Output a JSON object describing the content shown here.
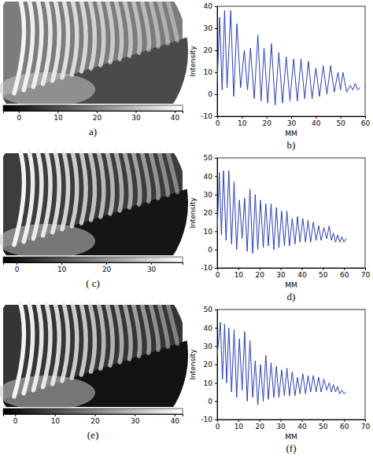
{
  "chart_data": [
    {
      "type": "image",
      "label": "a)",
      "colorbar": {
        "range": [
          -4,
          42
        ],
        "ticks": [
          0,
          10,
          20,
          30,
          40
        ]
      }
    },
    {
      "type": "line",
      "label": "b)",
      "xlabel": "MM",
      "ylabel": "Intensity",
      "color": "#2a3fb5",
      "xlim": [
        0,
        60
      ],
      "xticks": [
        0,
        10,
        20,
        30,
        40,
        50,
        60
      ],
      "ylim": [
        -10,
        40
      ],
      "yticks": [
        -10,
        0,
        10,
        20,
        30,
        40
      ],
      "x": [
        0,
        1,
        2,
        3,
        4,
        5.5,
        6.7,
        8,
        9.5,
        11,
        12.3,
        13.5,
        15,
        16.5,
        17.8,
        19,
        20.5,
        22,
        23.5,
        25,
        26.5,
        28,
        29.5,
        31,
        32.5,
        34,
        35.5,
        37,
        38.5,
        40,
        41.5,
        43,
        44.5,
        46,
        47.5,
        49,
        50,
        51,
        52.5,
        54,
        55,
        56,
        57,
        58
      ],
      "values": [
        5,
        35,
        2,
        38,
        3,
        38,
        -1,
        32,
        3,
        20,
        2,
        21,
        -2,
        27,
        -3,
        21,
        -4,
        23,
        -5,
        19,
        -4,
        17,
        -3,
        16,
        -3,
        16,
        -2,
        15,
        -2,
        12,
        -1,
        13,
        0,
        13,
        1,
        10,
        2,
        10,
        1,
        4,
        2,
        5,
        2,
        3
      ]
    },
    {
      "type": "image",
      "label": "( c)",
      "colorbar": {
        "range": [
          -3,
          37
        ],
        "ticks": [
          0,
          10,
          20,
          30
        ]
      }
    },
    {
      "type": "line",
      "label": "d)",
      "xlabel": "MM",
      "ylabel": "Intensity",
      "color": "#2a3fb5",
      "xlim": [
        0,
        70
      ],
      "xticks": [
        0,
        10,
        20,
        30,
        40,
        50,
        60,
        70
      ],
      "ylim": [
        -10,
        50
      ],
      "yticks": [
        -10,
        0,
        10,
        20,
        30,
        40,
        50
      ],
      "x": [
        0,
        1,
        2,
        3,
        4.2,
        5.5,
        6.8,
        8,
        9.2,
        10.5,
        11.8,
        13,
        14.2,
        15.5,
        16.8,
        18,
        19.2,
        20.5,
        21.8,
        23,
        24.2,
        25.5,
        26.8,
        28,
        29.2,
        30.5,
        31.8,
        33,
        34.2,
        35.5,
        36.8,
        38,
        39.2,
        40.5,
        41.8,
        43,
        44.2,
        45.5,
        46.8,
        48,
        49.2,
        50.5,
        51.8,
        53,
        54,
        55,
        56,
        57,
        58,
        59,
        60,
        61
      ],
      "values": [
        10,
        42,
        8,
        43,
        5,
        43,
        3,
        37,
        0,
        27,
        6,
        28,
        -1,
        33,
        -2,
        30,
        0,
        27,
        1,
        25,
        2,
        25,
        0,
        23,
        1,
        21,
        2,
        21,
        2,
        17,
        3,
        18,
        4,
        17,
        4,
        16,
        4,
        15,
        5,
        13,
        5,
        12,
        6,
        13,
        5,
        9,
        4,
        8,
        4,
        7,
        4,
        6
      ]
    },
    {
      "type": "image",
      "label": "(e)",
      "colorbar": {
        "range": [
          -3,
          42
        ],
        "ticks": [
          0,
          10,
          20,
          30,
          40
        ]
      }
    },
    {
      "type": "line",
      "label": "(f)",
      "xlabel": "MM",
      "ylabel": "Intensity",
      "color": "#2a3fb5",
      "xlim": [
        0,
        70
      ],
      "xticks": [
        0,
        10,
        20,
        30,
        40,
        50,
        60,
        70
      ],
      "ylim": [
        -10,
        50
      ],
      "yticks": [
        -10,
        0,
        10,
        20,
        30,
        40,
        50
      ],
      "x": [
        0,
        1.5,
        2.5,
        3.5,
        4.5,
        5.5,
        6.8,
        8,
        9.2,
        10.5,
        11.8,
        13,
        14.2,
        15.5,
        16.8,
        18,
        19.2,
        20.5,
        21.8,
        23,
        24.2,
        25.5,
        26.8,
        28,
        29.2,
        30.5,
        31.8,
        33,
        34.2,
        35.5,
        36.8,
        38,
        39.2,
        40.5,
        41.8,
        43,
        44.2,
        45.5,
        46.8,
        48,
        49.2,
        50.5,
        51.8,
        53,
        54,
        55,
        56,
        57,
        58,
        59,
        60,
        61
      ],
      "values": [
        25,
        43,
        12,
        42,
        10,
        40,
        5,
        39,
        2,
        34,
        6,
        38,
        0,
        33,
        2,
        22,
        -2,
        20,
        0,
        25,
        1,
        21,
        2,
        19,
        2,
        17,
        3,
        18,
        3,
        16,
        3,
        13,
        4,
        15,
        4,
        14,
        5,
        14,
        5,
        13,
        5,
        12,
        6,
        10,
        5,
        9,
        5,
        8,
        4,
        6,
        4,
        5
      ]
    }
  ]
}
